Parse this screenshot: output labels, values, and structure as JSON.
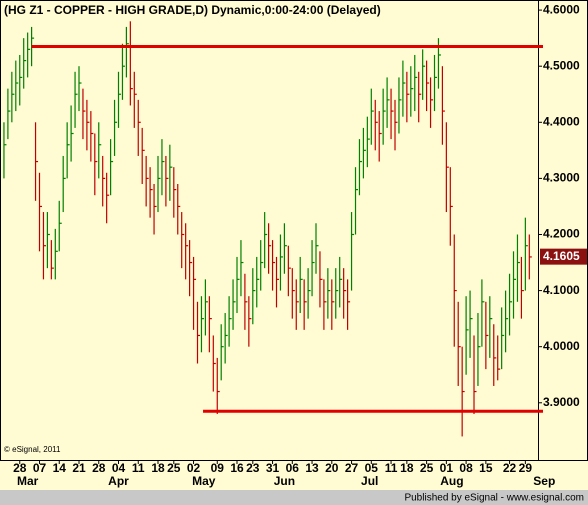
{
  "chart_data": {
    "type": "ohlc",
    "title": "(HG Z1 - COPPER - HIGH GRADE,D) Dynamic,0:00-24:00 (Delayed)",
    "copyright": "© eSignal, 2011",
    "footer": "Published by eSignal - www.esignal.com",
    "last_price": 4.1605,
    "up_color": "#008000",
    "down_color": "#c00000",
    "level_color": "#e00000",
    "last_price_color": "#8b1010",
    "xlim": [
      -1,
      135.2
    ],
    "ylim": [
      3.798,
      4.618
    ],
    "yticks": [
      {
        "value": 3.9,
        "label": "3.9000"
      },
      {
        "value": 4.0,
        "label": "4.0000"
      },
      {
        "value": 4.1,
        "label": "4.1000"
      },
      {
        "value": 4.2,
        "label": "4.2000"
      },
      {
        "value": 4.3,
        "label": "4.3000"
      },
      {
        "value": 4.4,
        "label": "4.4000"
      },
      {
        "value": 4.5,
        "label": "4.5000"
      },
      {
        "value": 4.6,
        "label": "4.6000"
      }
    ],
    "xticks": [
      {
        "value": 4,
        "label": "28"
      },
      {
        "value": 9,
        "label": "07"
      },
      {
        "value": 14,
        "label": "14"
      },
      {
        "value": 19,
        "label": "21"
      },
      {
        "value": 24,
        "label": "28"
      },
      {
        "value": 29,
        "label": "04"
      },
      {
        "value": 34,
        "label": "11"
      },
      {
        "value": 39,
        "label": "18"
      },
      {
        "value": 43,
        "label": "25"
      },
      {
        "value": 48,
        "label": "02"
      },
      {
        "value": 54,
        "label": "09"
      },
      {
        "value": 59,
        "label": "16"
      },
      {
        "value": 63,
        "label": "23"
      },
      {
        "value": 68,
        "label": "31"
      },
      {
        "value": 73,
        "label": "06"
      },
      {
        "value": 78,
        "label": "13"
      },
      {
        "value": 83,
        "label": "20"
      },
      {
        "value": 88,
        "label": "27"
      },
      {
        "value": 93,
        "label": "05"
      },
      {
        "value": 98,
        "label": "11"
      },
      {
        "value": 102,
        "label": "18"
      },
      {
        "value": 107,
        "label": "25"
      },
      {
        "value": 112,
        "label": "01"
      },
      {
        "value": 117,
        "label": "08"
      },
      {
        "value": 122,
        "label": "15"
      },
      {
        "value": 128,
        "label": "22"
      },
      {
        "value": 132,
        "label": "29"
      }
    ],
    "months": [
      {
        "value": 6,
        "label": "Mar"
      },
      {
        "value": 29,
        "label": "Apr"
      },
      {
        "value": 50.6,
        "label": "May"
      },
      {
        "value": 71,
        "label": "Jun"
      },
      {
        "value": 92.6,
        "label": "Jul"
      },
      {
        "value": 113.4,
        "label": "Aug"
      },
      {
        "value": 136.8,
        "label": "Sep"
      }
    ],
    "levels": [
      {
        "value": 4.535,
        "from": 7
      },
      {
        "value": 3.885,
        "from": 50.4
      }
    ],
    "high": [
      4.4,
      4.46,
      4.49,
      4.51,
      4.52,
      4.55,
      4.56,
      4.57,
      4.4,
      4.31,
      4.24,
      4.24,
      4.19,
      4.21,
      4.26,
      4.34,
      4.4,
      4.43,
      4.49,
      4.5,
      4.46,
      4.44,
      4.42,
      4.38,
      4.4,
      4.34,
      4.31,
      4.37,
      4.44,
      4.49,
      4.54,
      4.57,
      4.58,
      4.49,
      4.44,
      4.39,
      4.34,
      4.32,
      4.29,
      4.34,
      4.37,
      4.34,
      4.36,
      4.32,
      4.29,
      4.24,
      4.22,
      4.19,
      4.16,
      4.08,
      4.09,
      4.12,
      4.09,
      4.02,
      3.98,
      4.04,
      4.06,
      4.09,
      4.12,
      4.16,
      4.19,
      4.13,
      4.09,
      4.14,
      4.16,
      4.19,
      4.24,
      4.22,
      4.19,
      4.16,
      4.2,
      4.22,
      4.18,
      4.14,
      4.12,
      4.16,
      4.12,
      4.14,
      4.19,
      4.22,
      4.17,
      4.12,
      4.14,
      4.12,
      4.14,
      4.16,
      4.14,
      4.12,
      4.24,
      4.32,
      4.37,
      4.39,
      4.41,
      4.46,
      4.44,
      4.42,
      4.46,
      4.48,
      4.46,
      4.44,
      4.48,
      4.51,
      4.49,
      4.5,
      4.52,
      4.49,
      4.53,
      4.51,
      4.48,
      4.52,
      4.55,
      4.5,
      4.4,
      4.32,
      4.2,
      4.08,
      4.0,
      4.09,
      4.1,
      4.02,
      4.06,
      4.12,
      4.08,
      4.09,
      4.04,
      4.02,
      4.07,
      4.1,
      4.13,
      4.17,
      4.2,
      4.16,
      4.23,
      4.2
    ],
    "low": [
      4.3,
      4.37,
      4.4,
      4.42,
      4.43,
      4.46,
      4.48,
      4.5,
      4.26,
      4.17,
      4.12,
      4.14,
      4.12,
      4.12,
      4.17,
      4.24,
      4.3,
      4.33,
      4.39,
      4.42,
      4.37,
      4.35,
      4.33,
      4.27,
      4.3,
      4.25,
      4.22,
      4.27,
      4.34,
      4.39,
      4.44,
      4.48,
      4.43,
      4.39,
      4.34,
      4.29,
      4.25,
      4.23,
      4.2,
      4.24,
      4.27,
      4.25,
      4.26,
      4.23,
      4.2,
      4.14,
      4.12,
      4.09,
      4.03,
      3.97,
      3.99,
      4.02,
      3.99,
      3.92,
      3.88,
      3.94,
      3.97,
      4.0,
      4.03,
      4.06,
      4.09,
      4.03,
      4.0,
      4.04,
      4.07,
      4.1,
      4.14,
      4.13,
      4.1,
      4.07,
      4.1,
      4.13,
      4.09,
      4.05,
      4.03,
      4.06,
      4.03,
      4.05,
      4.09,
      4.13,
      4.07,
      4.03,
      4.05,
      4.03,
      4.05,
      4.07,
      4.05,
      4.03,
      4.1,
      4.2,
      4.27,
      4.3,
      4.32,
      4.36,
      4.35,
      4.33,
      4.36,
      4.39,
      4.37,
      4.35,
      4.38,
      4.41,
      4.4,
      4.41,
      4.42,
      4.4,
      4.44,
      4.42,
      4.39,
      4.42,
      4.46,
      4.36,
      4.24,
      4.18,
      4.0,
      3.93,
      3.84,
      3.95,
      3.98,
      3.88,
      3.93,
      4.0,
      3.96,
      3.98,
      3.93,
      3.94,
      3.96,
      3.99,
      4.02,
      4.05,
      4.08,
      4.05,
      4.1,
      4.12
    ],
    "close": [
      4.36,
      4.42,
      4.45,
      4.47,
      4.48,
      4.51,
      4.53,
      4.55,
      4.33,
      4.25,
      4.18,
      4.2,
      4.14,
      4.17,
      4.22,
      4.3,
      4.36,
      4.38,
      4.45,
      4.47,
      4.42,
      4.4,
      4.38,
      4.33,
      4.36,
      4.3,
      4.27,
      4.33,
      4.4,
      4.45,
      4.5,
      4.54,
      4.46,
      4.45,
      4.4,
      4.35,
      4.3,
      4.28,
      4.25,
      4.3,
      4.33,
      4.3,
      4.32,
      4.28,
      4.25,
      4.2,
      4.18,
      4.15,
      4.12,
      4.02,
      4.05,
      4.08,
      4.05,
      3.97,
      3.92,
      4.0,
      4.02,
      4.05,
      4.08,
      4.12,
      4.15,
      4.08,
      4.05,
      4.1,
      4.12,
      4.15,
      4.2,
      4.18,
      4.15,
      4.12,
      4.16,
      4.18,
      4.14,
      4.1,
      4.08,
      4.12,
      4.08,
      4.1,
      4.15,
      4.18,
      4.12,
      4.08,
      4.1,
      4.08,
      4.1,
      4.12,
      4.1,
      4.08,
      4.2,
      4.28,
      4.33,
      4.35,
      4.37,
      4.42,
      4.4,
      4.38,
      4.42,
      4.44,
      4.42,
      4.4,
      4.44,
      4.47,
      4.45,
      4.46,
      4.48,
      4.45,
      4.5,
      4.47,
      4.44,
      4.48,
      4.52,
      4.42,
      4.32,
      4.25,
      4.1,
      4.0,
      3.92,
      4.03,
      4.05,
      3.92,
      4.0,
      4.08,
      4.02,
      4.05,
      3.98,
      3.96,
      4.02,
      4.05,
      4.08,
      4.12,
      4.15,
      4.1,
      4.18,
      4.16
    ]
  }
}
